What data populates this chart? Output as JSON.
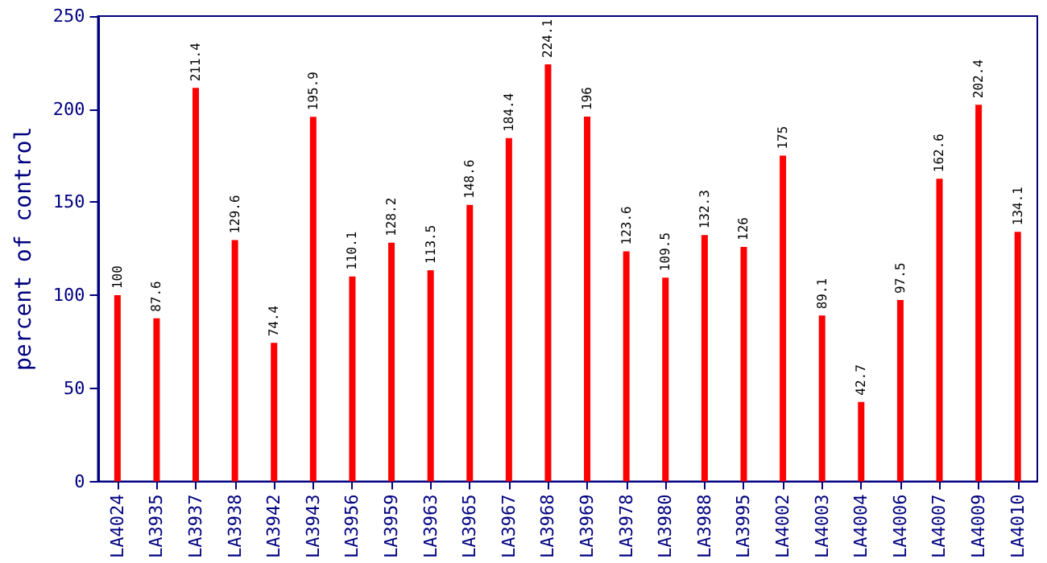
{
  "chart_data": {
    "type": "bar",
    "ylabel": "percent of control",
    "categories": [
      "LA4024",
      "LA3935",
      "LA3937",
      "LA3938",
      "LA3942",
      "LA3943",
      "LA3956",
      "LA3959",
      "LA3963",
      "LA3965",
      "LA3967",
      "LA3968",
      "LA3969",
      "LA3978",
      "LA3980",
      "LA3988",
      "LA3995",
      "LA4002",
      "LA4003",
      "LA4004",
      "LA4006",
      "LA4007",
      "LA4009",
      "LA4010"
    ],
    "values": [
      100,
      87.6,
      211.4,
      129.6,
      74.4,
      195.9,
      110.1,
      128.2,
      113.5,
      148.6,
      184.4,
      224.1,
      196,
      123.6,
      109.5,
      132.3,
      126,
      175,
      89.1,
      42.7,
      97.5,
      162.6,
      202.4,
      134.1
    ],
    "color": "#ff0000",
    "ylim": [
      0,
      250
    ],
    "yticks": [
      0,
      50,
      100,
      150,
      200,
      250
    ],
    "grid": false,
    "data_labels": true
  }
}
